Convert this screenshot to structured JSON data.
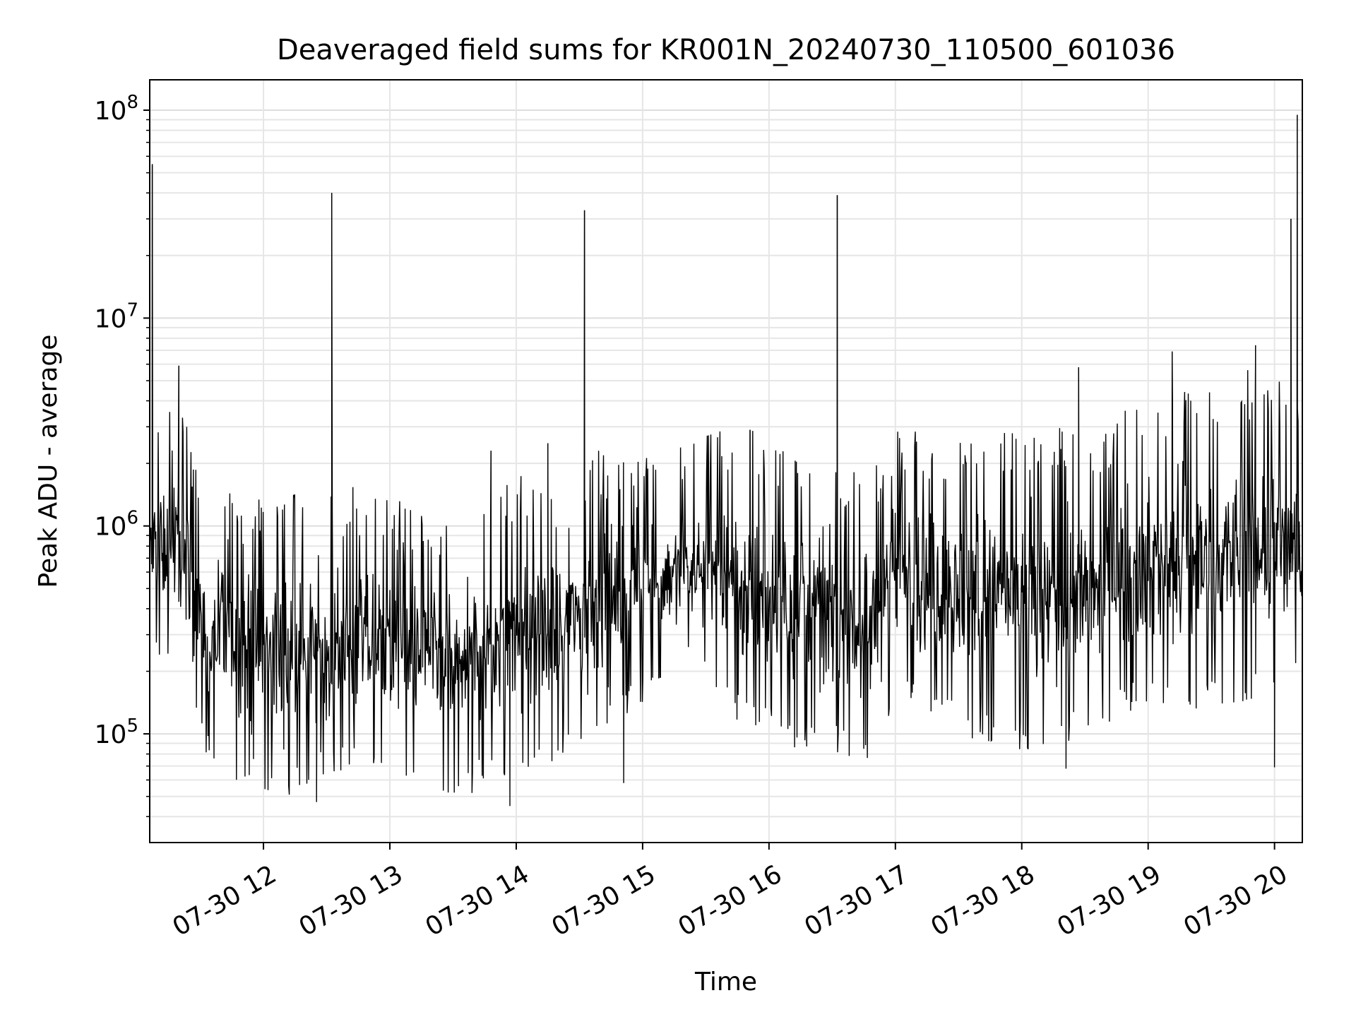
{
  "chart_data": {
    "type": "line",
    "title": "Deaveraged field sums for KR001N_20240730_110500_601036",
    "xlabel": "Time",
    "ylabel": "Peak ADU - average",
    "yscale": "log",
    "ylim": [
      30000,
      140000000
    ],
    "xlim_hours": [
      11.1,
      20.22
    ],
    "grid": true,
    "x_ticks": [
      {
        "hour": 12,
        "label": "07-30 12"
      },
      {
        "hour": 13,
        "label": "07-30 13"
      },
      {
        "hour": 14,
        "label": "07-30 14"
      },
      {
        "hour": 15,
        "label": "07-30 15"
      },
      {
        "hour": 16,
        "label": "07-30 16"
      },
      {
        "hour": 17,
        "label": "07-30 17"
      },
      {
        "hour": 18,
        "label": "07-30 18"
      },
      {
        "hour": 19,
        "label": "07-30 19"
      },
      {
        "hour": 20,
        "label": "07-30 20"
      }
    ],
    "y_ticks": [
      {
        "value": 100000,
        "base": "10",
        "exp": "5"
      },
      {
        "value": 1000000,
        "base": "10",
        "exp": "6"
      },
      {
        "value": 10000000,
        "base": "10",
        "exp": "7"
      },
      {
        "value": 100000000,
        "base": "10",
        "exp": "8"
      }
    ],
    "series": [
      {
        "name": "Peak ADU - average",
        "color": "#000000",
        "baseline_envelope": [
          {
            "hour": 11.1,
            "low": 300000,
            "high": 2000000
          },
          {
            "hour": 11.35,
            "low": 300000,
            "high": 2200000
          },
          {
            "hour": 11.5,
            "low": 120000,
            "high": 900000
          },
          {
            "hour": 11.8,
            "low": 80000,
            "high": 800000
          },
          {
            "hour": 12.2,
            "low": 70000,
            "high": 900000
          },
          {
            "hour": 12.6,
            "low": 90000,
            "high": 900000
          },
          {
            "hour": 13.0,
            "low": 90000,
            "high": 800000
          },
          {
            "hour": 13.4,
            "low": 70000,
            "high": 600000
          },
          {
            "hour": 13.8,
            "low": 80000,
            "high": 900000
          },
          {
            "hour": 14.2,
            "low": 100000,
            "high": 1100000
          },
          {
            "hour": 14.6,
            "low": 120000,
            "high": 1300000
          },
          {
            "hour": 15.0,
            "low": 200000,
            "high": 1400000
          },
          {
            "hour": 15.4,
            "low": 300000,
            "high": 1500000
          },
          {
            "hour": 15.8,
            "low": 150000,
            "high": 1700000
          },
          {
            "hour": 16.2,
            "low": 120000,
            "high": 1500000
          },
          {
            "hour": 16.6,
            "low": 110000,
            "high": 1200000
          },
          {
            "hour": 16.8,
            "low": 100000,
            "high": 1000000
          },
          {
            "hour": 17.0,
            "low": 200000,
            "high": 1800000
          },
          {
            "hour": 17.4,
            "low": 150000,
            "high": 1500000
          },
          {
            "hour": 17.8,
            "low": 120000,
            "high": 1600000
          },
          {
            "hour": 18.2,
            "low": 110000,
            "high": 1700000
          },
          {
            "hour": 18.6,
            "low": 150000,
            "high": 1600000
          },
          {
            "hour": 19.0,
            "low": 200000,
            "high": 2500000
          },
          {
            "hour": 19.4,
            "low": 180000,
            "high": 2800000
          },
          {
            "hour": 19.8,
            "low": 200000,
            "high": 3200000
          },
          {
            "hour": 20.22,
            "low": 250000,
            "high": 2500000
          }
        ],
        "spikes": [
          {
            "hour": 11.12,
            "value": 55000000
          },
          {
            "hour": 11.33,
            "value": 5900000
          },
          {
            "hour": 12.54,
            "value": 40000000
          },
          {
            "hour": 13.8,
            "value": 2300000
          },
          {
            "hour": 14.25,
            "value": 2500000
          },
          {
            "hour": 14.54,
            "value": 33000000
          },
          {
            "hour": 15.85,
            "value": 2900000
          },
          {
            "hour": 16.54,
            "value": 39000000
          },
          {
            "hour": 18.45,
            "value": 5800000
          },
          {
            "hour": 19.19,
            "value": 6900000
          },
          {
            "hour": 19.85,
            "value": 7400000
          },
          {
            "hour": 20.13,
            "value": 30000000
          },
          {
            "hour": 20.18,
            "value": 95000000
          }
        ],
        "dips": [
          {
            "hour": 12.42,
            "value": 47000.0
          },
          {
            "hour": 13.95,
            "value": 45000
          },
          {
            "hour": 13.65,
            "value": 52000
          },
          {
            "hour": 14.85,
            "value": 58000
          },
          {
            "hour": 18.35,
            "value": 68000
          },
          {
            "hour": 20.0,
            "value": 69000
          }
        ]
      }
    ]
  }
}
